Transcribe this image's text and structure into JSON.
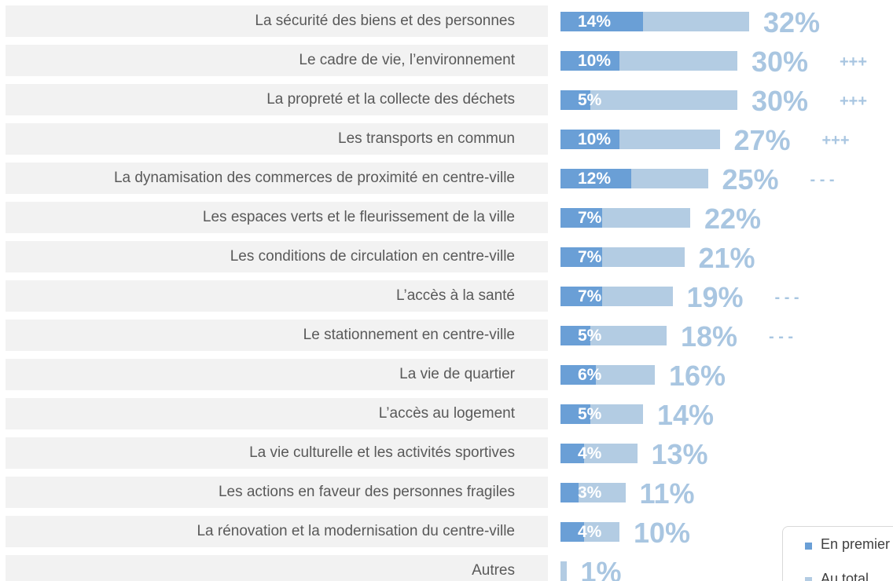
{
  "chart_data": {
    "type": "bar",
    "categories": [
      "La sécurité des biens et des personnes",
      "Le cadre de vie, l’environnement",
      "La propreté et la collecte des déchets",
      "Les transports en commun",
      "La dynamisation des commerces de proximité en centre-ville",
      "Les espaces verts et le fleurissement de la ville",
      "Les conditions de circulation en centre-ville",
      "L’accès à la santé",
      "Le stationnement en centre-ville",
      "La vie de quartier",
      "L’accès au logement",
      "La vie culturelle et les activités sportives",
      "Les actions en faveur des personnes fragiles",
      "La rénovation et la modernisation du centre-ville",
      "Autres"
    ],
    "series": [
      {
        "name": "En premier",
        "color": "#6a9fd6",
        "values": [
          14,
          10,
          5,
          10,
          12,
          7,
          7,
          7,
          5,
          6,
          5,
          4,
          3,
          4,
          null
        ],
        "value_labels": [
          "14%",
          "10%",
          "5%",
          "10%",
          "12%",
          "7%",
          "7%",
          "7%",
          "5%",
          "6%",
          "5%",
          "4%",
          "3%",
          "4%",
          null
        ]
      },
      {
        "name": "Au total",
        "color": "#b3cce3",
        "values": [
          32,
          30,
          30,
          27,
          25,
          22,
          21,
          19,
          18,
          16,
          14,
          13,
          11,
          10,
          1
        ],
        "value_labels": [
          "32%",
          "30%",
          "30%",
          "27%",
          "25%",
          "22%",
          "21%",
          "19%",
          "18%",
          "16%",
          "14%",
          "13%",
          "11%",
          "10%",
          "1%"
        ]
      }
    ],
    "annotations": [
      null,
      "+++",
      "+++",
      "+++",
      "- - -",
      null,
      null,
      "- - -",
      "- - -",
      null,
      null,
      null,
      null,
      null,
      null
    ]
  }
}
